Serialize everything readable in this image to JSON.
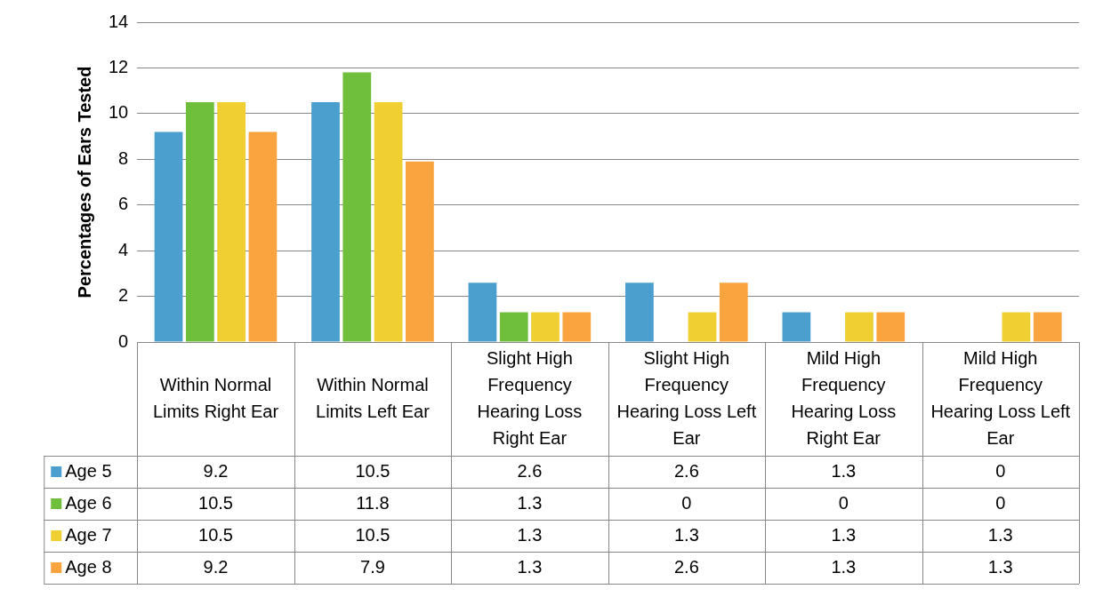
{
  "chart_data": {
    "type": "bar",
    "ylabel": "Percentages of Ears Tested",
    "categories": [
      "Within Normal Limits Right Ear",
      "Within Normal Limits Left Ear",
      "Slight High Frequency Hearing Loss Right Ear",
      "Slight High Frequency Hearing Loss Left Ear",
      "Mild High Frequency Hearing Loss Right Ear",
      "Mild High Frequency Hearing Loss Left Ear"
    ],
    "series": [
      {
        "name": "Age 5",
        "color": "#4a9fcf",
        "values": [
          9.2,
          10.5,
          2.6,
          2.6,
          1.3,
          0
        ]
      },
      {
        "name": "Age 6",
        "color": "#6fbf3c",
        "values": [
          10.5,
          11.8,
          1.3,
          0,
          0,
          0
        ]
      },
      {
        "name": "Age 7",
        "color": "#f0cf33",
        "values": [
          10.5,
          10.5,
          1.3,
          1.3,
          1.3,
          1.3
        ]
      },
      {
        "name": "Age 8",
        "color": "#f9a43e",
        "values": [
          9.2,
          7.9,
          1.3,
          2.6,
          1.3,
          1.3
        ]
      }
    ],
    "ylim": [
      0,
      14
    ],
    "yticks": [
      0,
      2,
      4,
      6,
      8,
      10,
      12,
      14
    ],
    "grid": "y",
    "legend": "bottom left",
    "data_labels": true
  }
}
